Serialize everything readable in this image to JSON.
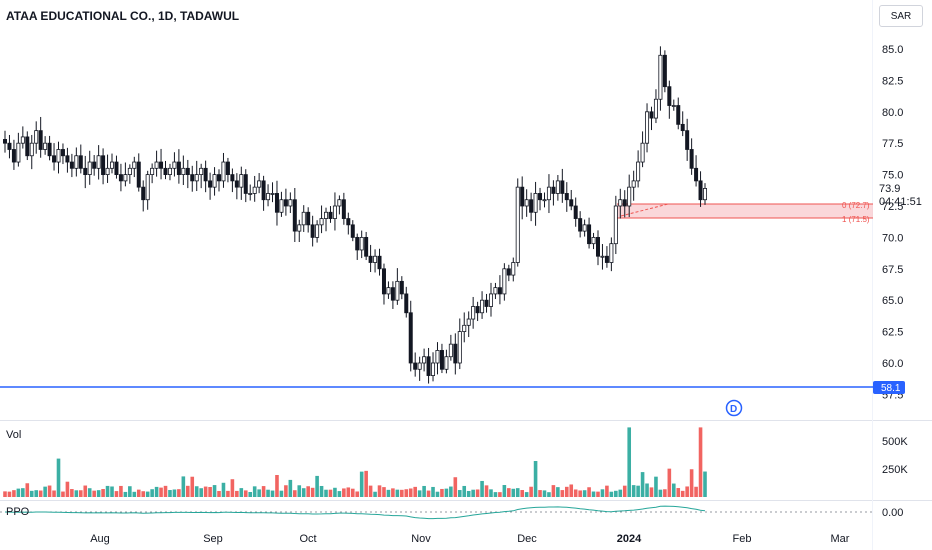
{
  "header": {
    "title": "ATAA EDUCATIONAL CO., 1D, TADAWUL",
    "currency": "SAR"
  },
  "panes": {
    "volume_label": "Vol",
    "ppo_label": "PPO"
  },
  "price_scale": {
    "ticks": [
      "85.0",
      "82.5",
      "80.0",
      "77.5",
      "75.0",
      "72.5",
      "70.0",
      "67.5",
      "65.0",
      "62.5",
      "60.0",
      "57.5"
    ],
    "last_price": "73.9",
    "countdown": "04:41:51",
    "support_level": "58.1"
  },
  "fib": {
    "level0_label": "0 (72.7)",
    "level1_label": "1 (71.5)"
  },
  "volume_scale": {
    "ticks": [
      "500K",
      "250K"
    ]
  },
  "ppo_scale": {
    "ticks": [
      "0.00"
    ]
  },
  "time_axis": {
    "labels": [
      "Aug",
      "Sep",
      "Oct",
      "Nov",
      "Dec",
      "2024",
      "Feb",
      "Mar"
    ]
  },
  "marker": {
    "label": "D"
  },
  "colors": {
    "up": "#26a69a",
    "down": "#ef5350",
    "candle": "#131722",
    "support_line": "#2962ff",
    "fib_fill": "#f8c9ce",
    "fib_line": "#ef5350"
  },
  "chart_data": {
    "type": "candlestick",
    "x_months": [
      "Aug",
      "Sep",
      "Oct",
      "Nov",
      "Dec",
      "2024",
      "Feb",
      "Mar"
    ],
    "price_range": [
      57.5,
      86.0
    ],
    "support_line": 58.1,
    "fib_levels": [
      72.7,
      71.5
    ],
    "last_price": 73.9,
    "closes": [
      77.5,
      77.0,
      76.0,
      77.5,
      78.0,
      76.5,
      77.5,
      78.5,
      77.0,
      77.5,
      76.5,
      76.0,
      77.0,
      76.5,
      76.0,
      75.5,
      76.5,
      75.5,
      75.0,
      76.0,
      75.5,
      76.5,
      75.0,
      75.5,
      76.0,
      75.0,
      74.5,
      75.0,
      75.5,
      76.0,
      74.0,
      73.0,
      75.0,
      75.5,
      76.0,
      75.5,
      75.0,
      75.5,
      76.0,
      75.0,
      75.5,
      75.0,
      74.5,
      75.0,
      75.5,
      74.5,
      74.0,
      75.0,
      74.5,
      76.0,
      75.0,
      74.5,
      74.0,
      75.0,
      73.5,
      73.5,
      74.0,
      74.5,
      73.0,
      73.5,
      73.5,
      72.0,
      73.0,
      72.5,
      73.0,
      70.5,
      71.0,
      72.0,
      71.0,
      70.0,
      71.0,
      71.5,
      72.0,
      71.5,
      72.5,
      73.0,
      71.5,
      71.0,
      70.0,
      69.0,
      70.0,
      68.5,
      68.0,
      68.5,
      67.5,
      65.5,
      66.0,
      65.0,
      66.5,
      65.5,
      64.0,
      60.0,
      59.5,
      60.0,
      60.5,
      59.0,
      60.0,
      61.0,
      59.5,
      60.5,
      61.5,
      60.0,
      62.5,
      63.0,
      63.5,
      64.5,
      64.0,
      65.0,
      64.5,
      65.5,
      66.0,
      65.5,
      67.5,
      67.0,
      68.0,
      74.0,
      72.5,
      73.0,
      72.0,
      73.5,
      73.0,
      73.0,
      74.0,
      73.5,
      74.5,
      73.5,
      73.0,
      72.5,
      71.5,
      70.5,
      71.0,
      69.5,
      70.0,
      68.5,
      68.5,
      68.0,
      69.5,
      72.5,
      73.0,
      72.5,
      74.0,
      74.5,
      76.0,
      77.5,
      80.0,
      79.5,
      81.0,
      84.5,
      82.0,
      80.5,
      80.5,
      79.0,
      78.5,
      77.0,
      75.5,
      74.5,
      73.0,
      73.9
    ],
    "volume_range": [
      0,
      600000
    ],
    "volume_ticks": [
      500000,
      250000
    ],
    "ppo_zero": 0.0
  }
}
